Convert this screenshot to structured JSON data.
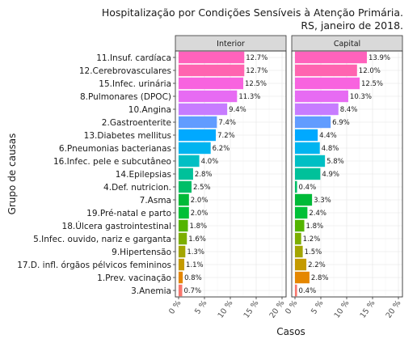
{
  "chart_data": {
    "type": "bar",
    "orientation": "horizontal",
    "title": [
      "Hospitalização por Condições Sensíveis à Atenção Primária.",
      "RS, janeiro de 2018."
    ],
    "xlabel": "Casos",
    "ylabel": "Grupo de causas",
    "xlim": [
      0,
      20
    ],
    "x_ticks": [
      "0 %",
      "5 %",
      "10 %",
      "15 %",
      "20 %"
    ],
    "x_tick_values": [
      0,
      5,
      10,
      15,
      20
    ],
    "grid": true,
    "legend": "none",
    "categories": [
      "11.Insuf. cardíaca",
      "12.Cerebrovasculares",
      "15.Infec. urinária",
      "8.Pulmonares (DPOC)",
      "10.Angina",
      "2.Gastroenterite",
      "13.Diabetes mellitus",
      "6.Pneumonias bacterianas",
      "16.Infec. pele e subcutâneo",
      "14.Epilepsias",
      "4.Def. nutricion.",
      "7.Asma",
      "19.Pré-natal e parto",
      "18.Úlcera gastrointestinal",
      "5.Infec. ouvido, nariz e garganta",
      "9.Hipertensão",
      "17.D. infl. órgãos pélvicos femininos",
      "1.Prev. vacinação",
      "3.Anemia"
    ],
    "category_colors": [
      "#FF62BC",
      "#FF64B0",
      "#F863DF",
      "#E76BF3",
      "#C77CFF",
      "#619CFF",
      "#00A9FF",
      "#00B4F0",
      "#00BFC4",
      "#00C19A",
      "#00BE67",
      "#00BA38",
      "#00C037",
      "#53B400",
      "#7CAE00",
      "#A3A500",
      "#C49A00",
      "#E58700",
      "#F8766D"
    ],
    "panels": [
      {
        "name": "Interior",
        "values": [
          12.7,
          12.7,
          12.5,
          11.3,
          9.4,
          7.4,
          7.2,
          6.2,
          4.0,
          2.8,
          2.5,
          2.0,
          2.0,
          1.8,
          1.6,
          1.3,
          1.1,
          0.8,
          0.7
        ],
        "labels": [
          "12.7%",
          "12.7%",
          "12.5%",
          "11.3%",
          "9.4%",
          "7.4%",
          "7.2%",
          "6.2%",
          "4.0%",
          "2.8%",
          "2.5%",
          "2.0%",
          "2.0%",
          "1.8%",
          "1.6%",
          "1.3%",
          "1.1%",
          "0.8%",
          "0.7%"
        ]
      },
      {
        "name": "Capital",
        "values": [
          13.9,
          12.0,
          12.5,
          10.3,
          8.4,
          6.9,
          4.4,
          4.8,
          5.8,
          4.9,
          0.4,
          3.3,
          2.4,
          1.8,
          1.2,
          1.5,
          2.2,
          2.8,
          0.4
        ],
        "labels": [
          "13.9%",
          "12.0%",
          "12.5%",
          "10.3%",
          "8.4%",
          "6.9%",
          "4.4%",
          "4.8%",
          "5.8%",
          "4.9%",
          "0.4%",
          "3.3%",
          "2.4%",
          "1.8%",
          "1.2%",
          "1.5%",
          "2.2%",
          "2.8%",
          "0.4%"
        ]
      }
    ]
  }
}
